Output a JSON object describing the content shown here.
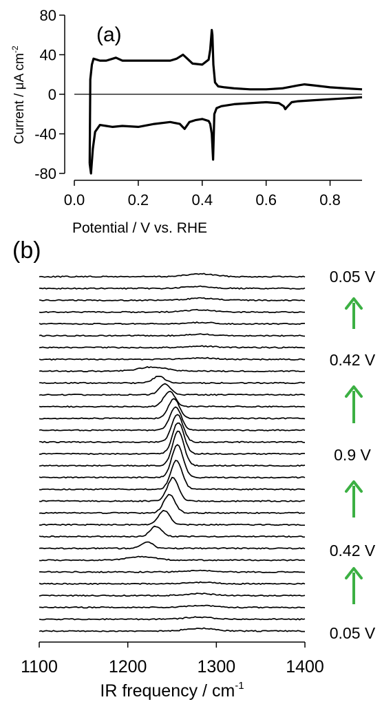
{
  "chart_data": [
    {
      "type": "line",
      "panel_label": "(a)",
      "xlabel": "Potential / V vs. RHE",
      "ylabel": "Current / μA cm",
      "ylabel_sup": "-2",
      "xlim": [
        0.0,
        0.9
      ],
      "ylim": [
        -80,
        80
      ],
      "xticks": [
        0.0,
        0.2,
        0.4,
        0.6,
        0.8
      ],
      "xtick_labels": [
        "0.0",
        "0.2",
        "0.4",
        "0.6",
        "0.8"
      ],
      "yticks": [
        80,
        40,
        0,
        -40,
        -80
      ],
      "ytick_labels": [
        "80",
        "40",
        "0",
        "-40",
        "-80"
      ],
      "zero_line": true,
      "series": [
        {
          "x": [
            0.048,
            0.05,
            0.055,
            0.06,
            0.08,
            0.1,
            0.12,
            0.13,
            0.15,
            0.2,
            0.25,
            0.3,
            0.32,
            0.34,
            0.35,
            0.37,
            0.4,
            0.42,
            0.425,
            0.43,
            0.432,
            0.435,
            0.44,
            0.45,
            0.47,
            0.5,
            0.55,
            0.6,
            0.65,
            0.7,
            0.72,
            0.75,
            0.8,
            0.85,
            0.9
          ],
          "values": [
            -70,
            15,
            30,
            36,
            34,
            34,
            36,
            37,
            34,
            34,
            34,
            34,
            36,
            40,
            37,
            31,
            30,
            35,
            45,
            65,
            60,
            30,
            12,
            8,
            7,
            6,
            5,
            5,
            6,
            9,
            10,
            9,
            7,
            6,
            5
          ]
        },
        {
          "x": [
            0.9,
            0.85,
            0.8,
            0.75,
            0.7,
            0.68,
            0.665,
            0.66,
            0.655,
            0.64,
            0.6,
            0.55,
            0.5,
            0.46,
            0.445,
            0.438,
            0.434,
            0.43,
            0.425,
            0.42,
            0.4,
            0.38,
            0.36,
            0.345,
            0.33,
            0.3,
            0.25,
            0.2,
            0.15,
            0.12,
            0.1,
            0.08,
            0.065,
            0.058,
            0.052,
            0.048
          ],
          "values": [
            -3,
            -4,
            -5,
            -6,
            -7,
            -8,
            -13,
            -15,
            -12,
            -9,
            -8,
            -9,
            -10,
            -12,
            -14,
            -20,
            -66,
            -40,
            -30,
            -27,
            -25,
            -26,
            -28,
            -35,
            -30,
            -28,
            -30,
            -33,
            -32,
            -33,
            -32,
            -31,
            -38,
            -55,
            -80,
            -70
          ]
        }
      ]
    },
    {
      "type": "line",
      "panel_label": "(b)",
      "xlabel": "IR frequency / cm",
      "xlabel_sup": "-1",
      "xlim": [
        1100,
        1400
      ],
      "xticks": [
        1100,
        1200,
        1300,
        1400
      ],
      "xtick_labels": [
        "1100",
        "1200",
        "1300",
        "1400"
      ],
      "y_axis_shown": false,
      "potential_labels": [
        "0.05 V",
        "0.42 V",
        "0.9 V",
        "0.42 V",
        "0.05 V"
      ],
      "arrow_direction": "up",
      "arrow_color": "#3cb043",
      "trace_count": 31,
      "peaks": {
        "centers_cm": [
          1282,
          1280,
          1282,
          1280,
          1282,
          1283,
          1283,
          1283,
          1228,
          1235,
          1242,
          1247,
          1252,
          1254,
          1256,
          1257,
          1257,
          1256,
          1255,
          1251,
          1247,
          1241,
          1232,
          1222,
          1215,
          1280,
          1282,
          1280,
          1282,
          1280,
          1282
        ],
        "amplitudes": [
          4,
          3,
          3,
          3,
          2,
          2,
          2,
          2,
          6,
          10,
          16,
          22,
          28,
          34,
          40,
          46,
          50,
          48,
          42,
          34,
          27,
          21,
          15,
          9,
          5,
          2,
          2,
          3,
          3,
          3,
          4
        ]
      }
    }
  ]
}
